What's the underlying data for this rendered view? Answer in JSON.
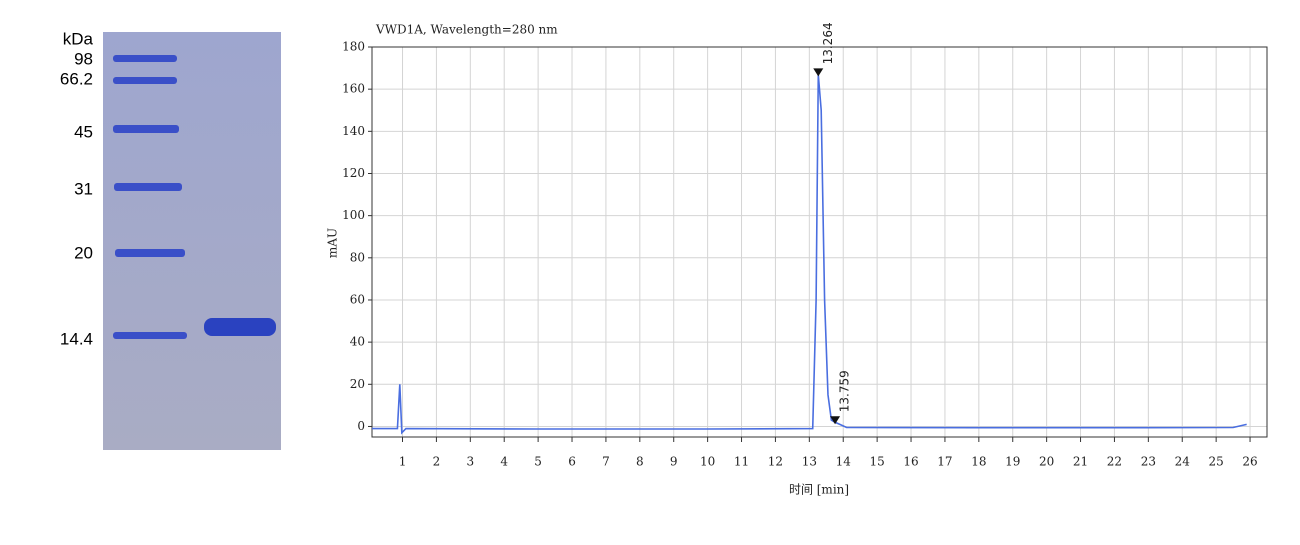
{
  "gel": {
    "unit_label": "kDa",
    "marker_labels": [
      "98",
      "66.2",
      "45",
      "31",
      "20",
      "14.4"
    ]
  },
  "chart_data": {
    "type": "line",
    "title": "VWD1A, Wavelength=280 nm",
    "x_label": "时间 [min]",
    "y_label": "mAU",
    "xlim": [
      0.1,
      26.5
    ],
    "ylim": [
      -5,
      180
    ],
    "xticks": [
      1,
      2,
      3,
      4,
      5,
      6,
      7,
      8,
      9,
      10,
      11,
      12,
      13,
      14,
      15,
      16,
      17,
      18,
      19,
      20,
      21,
      22,
      23,
      24,
      25,
      26
    ],
    "yticks": [
      0,
      20,
      40,
      60,
      80,
      100,
      120,
      140,
      160,
      180
    ],
    "grid": true,
    "series": [
      {
        "color": "#4a6ee0",
        "x": [
          0.1,
          0.85,
          0.92,
          0.98,
          1.1,
          5,
          10,
          13.1,
          13.2,
          13.264,
          13.35,
          13.45,
          13.55,
          13.65,
          13.759,
          13.9,
          14.1,
          18,
          22,
          25.5,
          25.9
        ],
        "values": [
          -1,
          -1,
          20,
          -3,
          -1,
          -1.2,
          -1.2,
          -1,
          60,
          167,
          150,
          60,
          15,
          3,
          2,
          1,
          -0.5,
          -0.6,
          -0.6,
          -0.5,
          1
        ]
      }
    ],
    "annotations": [
      {
        "x": 13.264,
        "y": 167,
        "label": "13.264"
      },
      {
        "x": 13.759,
        "y": 2,
        "label": "13.759"
      }
    ]
  }
}
